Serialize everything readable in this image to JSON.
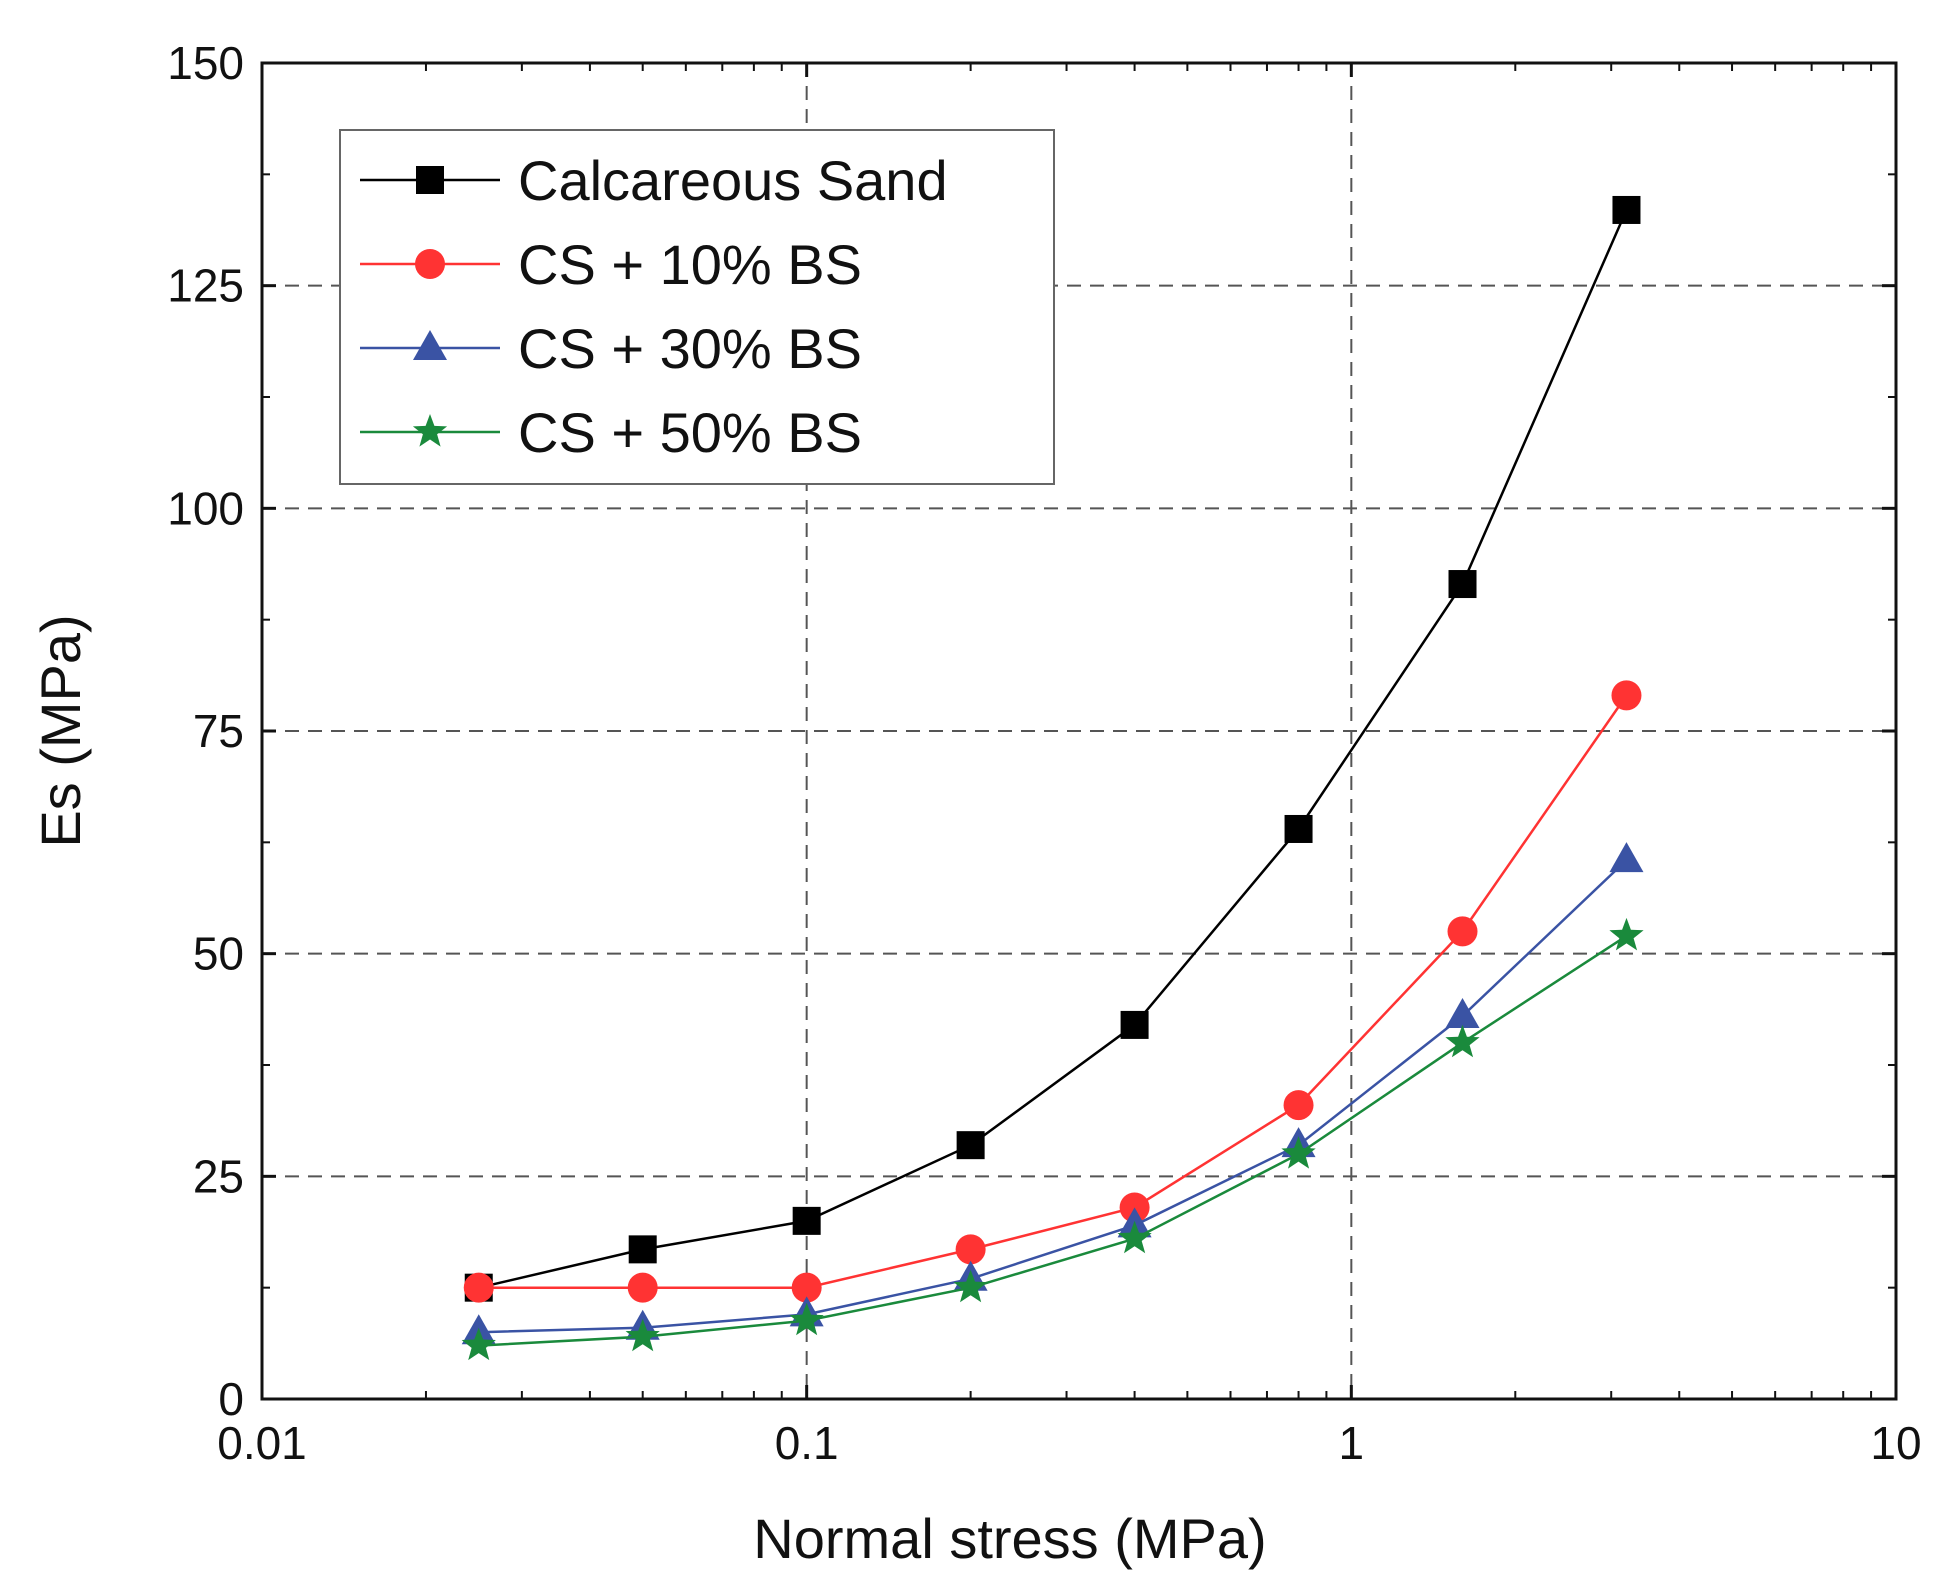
{
  "chart_data": {
    "type": "line",
    "xscale": "log",
    "xlabel": "Normal stress (MPa)",
    "ylabel": "Es (MPa)",
    "xlim": [
      0.01,
      10
    ],
    "ylim": [
      0,
      150
    ],
    "xticks": [
      0.01,
      0.1,
      1,
      10
    ],
    "xtick_labels": [
      "0.01",
      "0.1",
      "1",
      "10"
    ],
    "yticks": [
      0,
      25,
      50,
      75,
      100,
      125,
      150
    ],
    "ytick_labels": [
      "0",
      "25",
      "50",
      "75",
      "100",
      "125",
      "150"
    ],
    "grid": "dashed",
    "legend_position": "top-left",
    "x": [
      0.025,
      0.05,
      0.1,
      0.2,
      0.4,
      0.8,
      1.6,
      3.2
    ],
    "series": [
      {
        "name": "Calcareous Sand",
        "color": "#000000",
        "marker": "square",
        "values": [
          12.5,
          16.8,
          20.0,
          28.5,
          42.0,
          64.0,
          91.5,
          133.5
        ]
      },
      {
        "name": "CS + 10% BS",
        "color": "#ff3333",
        "marker": "circle",
        "values": [
          12.5,
          12.5,
          12.5,
          16.8,
          21.5,
          33.0,
          52.5,
          79.0
        ]
      },
      {
        "name": "CS + 30% BS",
        "color": "#3a53a4",
        "marker": "triangle",
        "values": [
          7.5,
          8.0,
          9.5,
          13.5,
          19.5,
          28.5,
          43.0,
          60.5
        ]
      },
      {
        "name": "CS + 50% BS",
        "color": "#1a8a3c",
        "marker": "star",
        "values": [
          6.0,
          7.0,
          8.8,
          12.5,
          18.0,
          27.5,
          40.0,
          52.0
        ]
      }
    ]
  }
}
